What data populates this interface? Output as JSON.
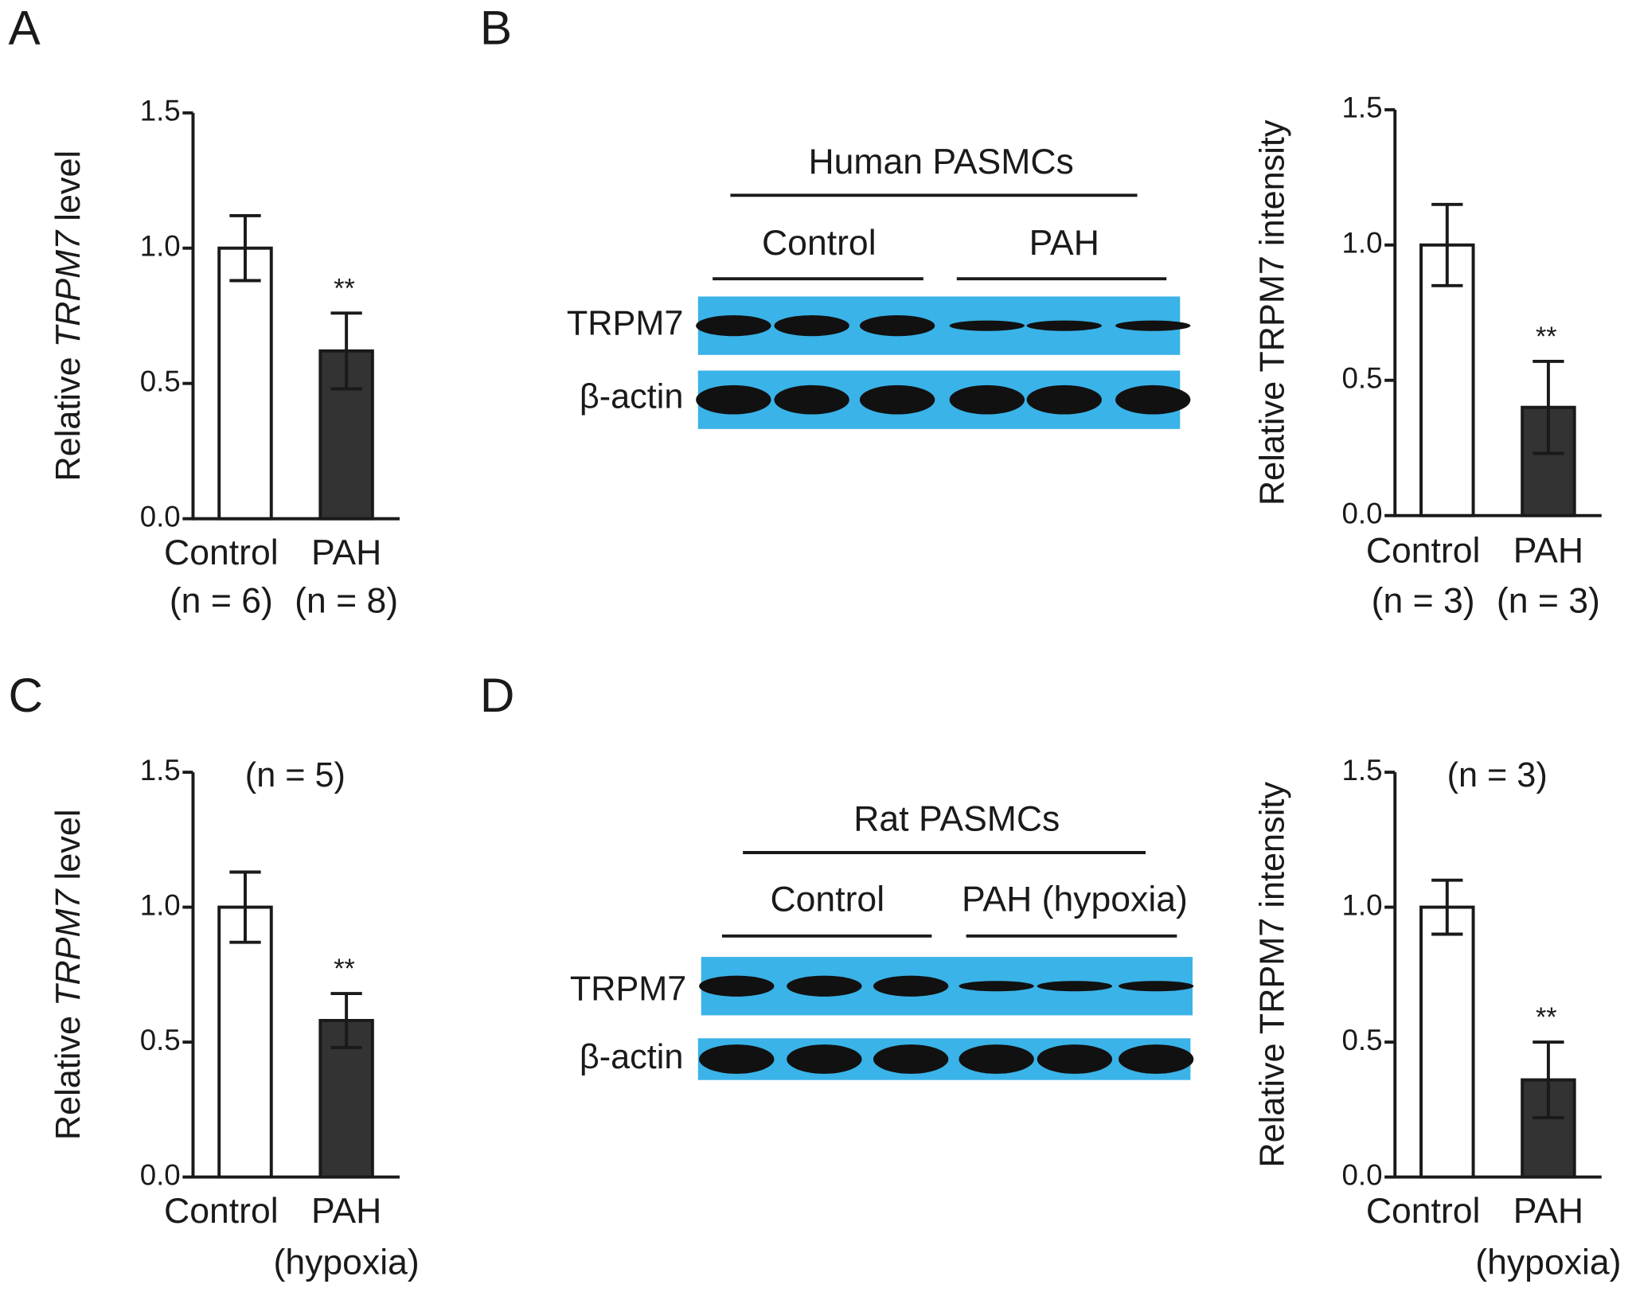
{
  "panels": [
    "A",
    "B",
    "C",
    "D"
  ],
  "chart_data": [
    {
      "type": "bar",
      "ylabel": [
        {
          "text": "Relative "
        },
        {
          "text": "TRPM7",
          "italic": true
        },
        {
          "text": " level"
        }
      ],
      "categories": [
        "Control",
        "PAH"
      ],
      "sublabels": [
        "(n = 6)",
        "(n = 8)"
      ],
      "values": [
        1.0,
        0.62
      ],
      "errors": [
        0.12,
        0.14
      ],
      "significance": [
        null,
        "**"
      ],
      "colors": [
        "#ffffff",
        "#333333"
      ],
      "ylim": [
        0,
        1.5
      ],
      "yticks": [
        {
          "value": 0,
          "label": "0.0"
        },
        0.5,
        {
          "value": 1,
          "label": "1.0"
        },
        {
          "value": 1.5,
          "label": "1.5"
        }
      ]
    },
    {
      "type": "bar",
      "ylabel": [
        {
          "text": "Relative TRPM7 intensity"
        }
      ],
      "categories": [
        "Control",
        "PAH"
      ],
      "sublabels": [
        "(n = 3)",
        "(n = 3)"
      ],
      "values": [
        1.0,
        0.4
      ],
      "errors": [
        0.15,
        0.17
      ],
      "significance": [
        null,
        "**"
      ],
      "colors": [
        "#ffffff",
        "#333333"
      ],
      "ylim": [
        0,
        1.5
      ],
      "yticks": [
        {
          "value": 0,
          "label": "0.0"
        },
        0.5,
        {
          "value": 1,
          "label": "1.0"
        },
        {
          "value": 1.5,
          "label": "1.5"
        }
      ]
    },
    {
      "type": "bar",
      "ylabel": [
        {
          "text": "Relative "
        },
        {
          "text": "TRPM7",
          "italic": true
        },
        {
          "text": " level"
        }
      ],
      "annotation": "(n = 5)",
      "categories": [
        "Control",
        "PAH"
      ],
      "sublabels": [
        null,
        "(hypoxia)"
      ],
      "values": [
        1.0,
        0.58
      ],
      "errors": [
        0.13,
        0.1
      ],
      "significance": [
        null,
        "**"
      ],
      "colors": [
        "#ffffff",
        "#333333"
      ],
      "ylim": [
        0,
        1.5
      ],
      "yticks": [
        {
          "value": 0,
          "label": "0.0"
        },
        0.5,
        {
          "value": 1,
          "label": "1.0"
        },
        {
          "value": 1.5,
          "label": "1.5"
        }
      ]
    },
    {
      "type": "bar",
      "ylabel": [
        {
          "text": "Relative TRPM7 intensity"
        }
      ],
      "annotation": "(n = 3)",
      "categories": [
        "Control",
        "PAH"
      ],
      "sublabels": [
        null,
        "(hypoxia)"
      ],
      "values": [
        1.0,
        0.36
      ],
      "errors": [
        0.1,
        0.14
      ],
      "significance": [
        null,
        "**"
      ],
      "colors": [
        "#ffffff",
        "#333333"
      ],
      "ylim": [
        0,
        1.5
      ],
      "yticks": [
        {
          "value": 0,
          "label": "0.0"
        },
        0.5,
        {
          "value": 1,
          "label": "1.0"
        },
        {
          "value": 1.5,
          "label": "1.5"
        }
      ]
    }
  ],
  "blots": [
    {
      "title": "Human PASMCs",
      "groups": [
        "Control",
        "PAH"
      ],
      "rows": [
        "TRPM7",
        "β-actin"
      ]
    },
    {
      "title": "Rat PASMCs",
      "groups": [
        "Control",
        "PAH (hypoxia)"
      ],
      "rows": [
        "TRPM7",
        "β-actin"
      ]
    }
  ]
}
